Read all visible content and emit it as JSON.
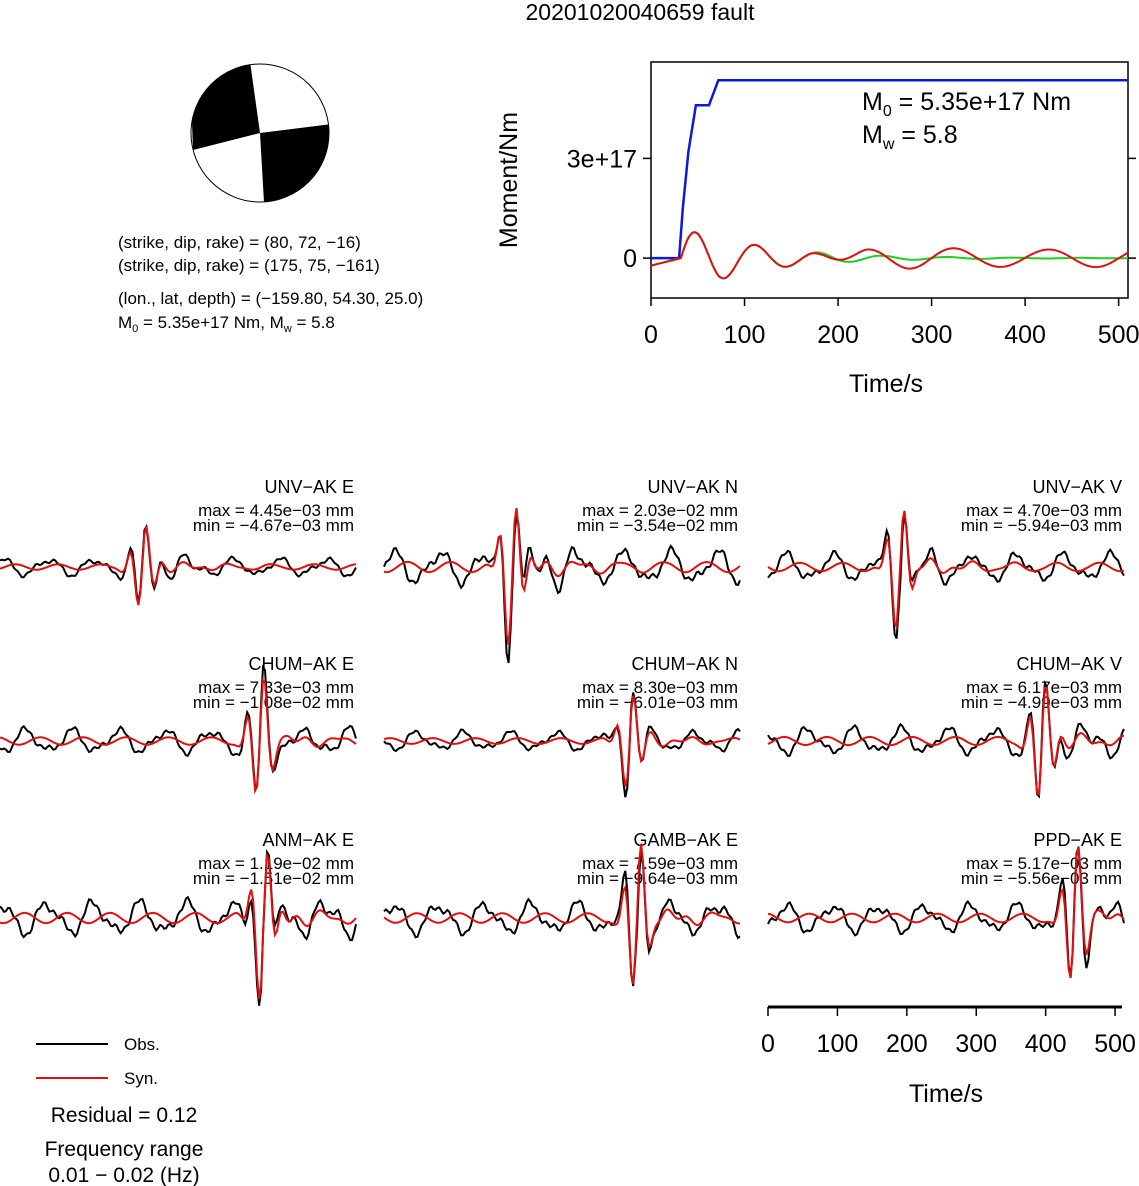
{
  "title": "20201020040659 fault",
  "colors": {
    "obs": "#000000",
    "syn": "#e01010",
    "moment": "#0a1ad8",
    "fit": "#22cc22",
    "beach_dark": "#000000"
  },
  "mechanism": {
    "line1": "(strike, dip, rake) = (80, 72, −16)",
    "line2": "(strike, dip, rake) = (175, 75, −161)",
    "line3": "(lon., lat, depth) = (−159.80, 54.30, 25.0)",
    "line4_m0_prefix": "M",
    "line4_m0_sub": "0",
    "line4_m0_val": " = 5.35e+17 Nm, M",
    "line4_mw_sub": "w",
    "line4_mw_val": " = 5.8"
  },
  "moment_chart": {
    "type": "line",
    "ylabel": "Moment/Nm",
    "xlabel": "Time/s",
    "xlim": [
      0,
      510
    ],
    "xticks": [
      "0",
      "100",
      "200",
      "300",
      "400",
      "500"
    ],
    "xtick_values": [
      0,
      100,
      200,
      300,
      400,
      500
    ],
    "yticks": [
      "0",
      "3e+17"
    ],
    "ytick_values": [
      0,
      3e+17
    ],
    "ylim": [
      -1.2e+17,
      5.9e+17
    ],
    "annotation_m0_prefix": "M",
    "annotation_m0_sub": "0",
    "annotation_m0_val": " = 5.35e+17 Nm",
    "annotation_mw_prefix": "M",
    "annotation_mw_sub": "w",
    "annotation_mw_val": " = 5.8",
    "cumulative_moment": {
      "x": [
        0,
        30,
        34,
        40,
        48,
        62,
        72,
        510
      ],
      "y": [
        0,
        0,
        1.5e+17,
        3.2e+17,
        4.6e+17,
        4.6e+17,
        5.35e+17,
        5.35e+17
      ]
    }
  },
  "chart_data": [
    {
      "type": "line",
      "description_source": "waveform panels",
      "xlabel": "Time/s",
      "xlim": [
        0,
        510
      ],
      "xticks": [
        "0",
        "100",
        "200",
        "300",
        "400",
        "500"
      ],
      "panels": [
        {
          "station": "UNV−AK E",
          "max": "max = 4.45e−03 mm",
          "min": "min = −4.67e−03 mm"
        },
        {
          "station": "UNV−AK N",
          "max": "max = 2.03e−02 mm",
          "min": "min = −3.54e−02 mm"
        },
        {
          "station": "UNV−AK V",
          "max": "max = 4.70e−03 mm",
          "min": "min = −5.94e−03 mm"
        },
        {
          "station": "CHUM−AK E",
          "max": "max = 7.33e−03 mm",
          "min": "min = −1.08e−02 mm"
        },
        {
          "station": "CHUM−AK N",
          "max": "max = 8.30e−03 mm",
          "min": "min = −6.01e−03 mm"
        },
        {
          "station": "CHUM−AK V",
          "max": "max = 6.17e−03 mm",
          "min": "min = −4.99e−03 mm"
        },
        {
          "station": "ANM−AK E",
          "max": "max = 1.19e−02 mm",
          "min": "min = −1.51e−02 mm"
        },
        {
          "station": "GAMB−AK E",
          "max": "max = 7.59e−03 mm",
          "min": "min = −9.64e−03 mm"
        },
        {
          "station": "PPD−AK E",
          "max": "max = 5.17e−03 mm",
          "min": "min = −5.56e−03 mm"
        }
      ]
    }
  ],
  "legend": {
    "obs": "Obs.",
    "syn": "Syn."
  },
  "footer": {
    "residual": "Residual = 0.12",
    "freq_title": "Frequency range",
    "freq_range": "0.01 − 0.02 (Hz)"
  }
}
